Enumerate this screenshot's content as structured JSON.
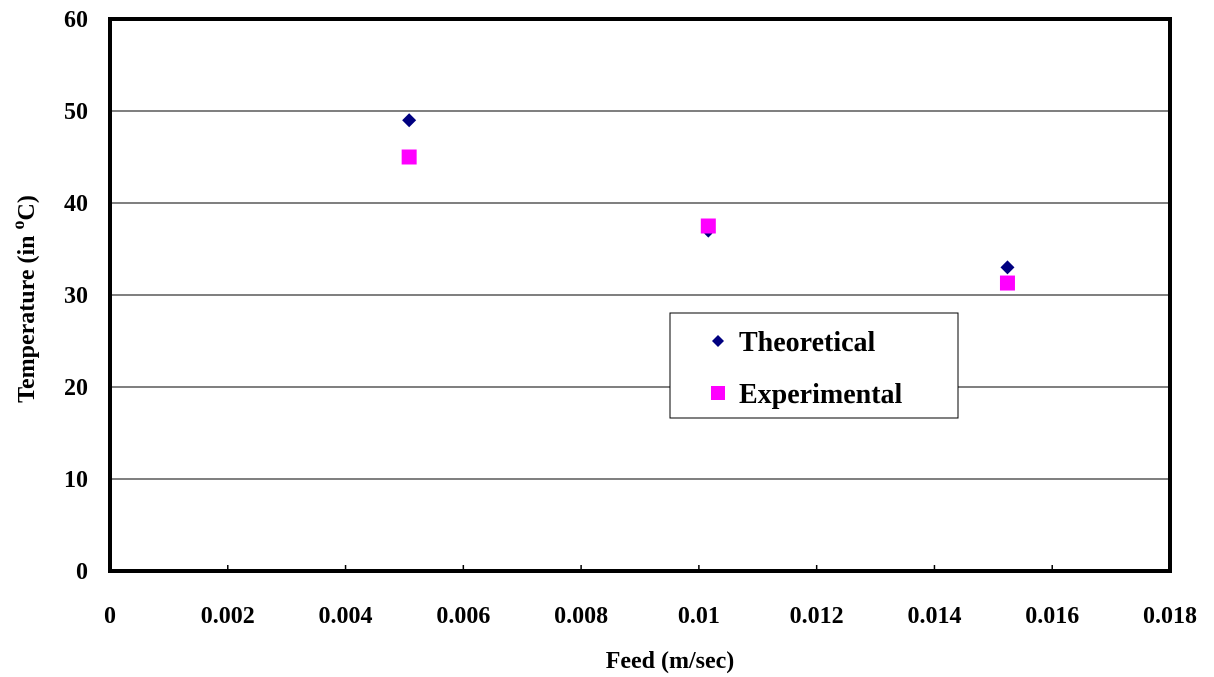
{
  "chart_data": {
    "type": "scatter",
    "title": "",
    "xlabel": "Feed (m/sec)",
    "ylabel": {
      "prefix": "Temperature (in ",
      "superscript": "o",
      "suffix": "C)"
    },
    "xlim": [
      0,
      0.018
    ],
    "ylim": [
      0,
      60
    ],
    "x_ticks": [
      "0",
      "0.002",
      "0.004",
      "0.006",
      "0.008",
      "0.01",
      "0.012",
      "0.014",
      "0.016",
      "0.018"
    ],
    "y_ticks": [
      "0",
      "10",
      "20",
      "30",
      "40",
      "50",
      "60"
    ],
    "grid": "horizontal",
    "legend_position": "right-center",
    "series": [
      {
        "name": "Theoretical",
        "marker": "diamond",
        "color": "#000080",
        "points": [
          {
            "x": 0.00508,
            "y": 49
          },
          {
            "x": 0.01016,
            "y": 37
          },
          {
            "x": 0.01524,
            "y": 33
          }
        ]
      },
      {
        "name": "Experimental",
        "marker": "square",
        "color": "#FF00FF",
        "points": [
          {
            "x": 0.00508,
            "y": 45
          },
          {
            "x": 0.01016,
            "y": 37.5
          },
          {
            "x": 0.01524,
            "y": 31.3
          }
        ]
      }
    ]
  }
}
